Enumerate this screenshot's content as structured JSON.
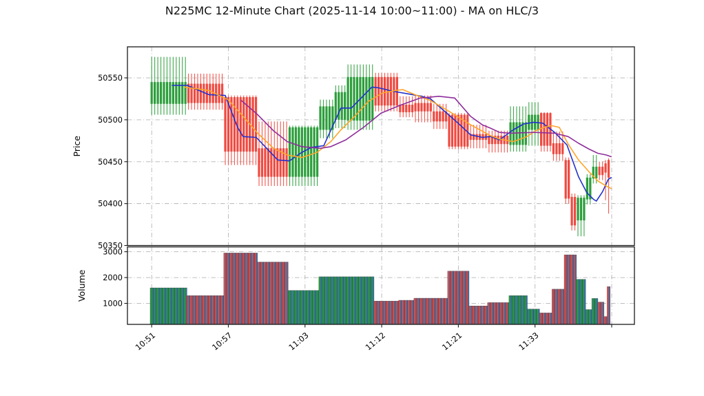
{
  "title": "N225MC 12-Minute Chart (2025-11-14 10:00~11:00) - MA on HLC/3",
  "chart_data": {
    "type": "candlestick+volume",
    "price_axis": {
      "label": "Price",
      "ticks": [
        50350,
        50400,
        50450,
        50500,
        50550
      ],
      "range": [
        50350,
        50587
      ]
    },
    "volume_axis": {
      "label": "Volume",
      "ticks": [
        1000,
        2000,
        3000
      ],
      "range": [
        187,
        3187
      ]
    },
    "x_axis": {
      "ticks": [
        {
          "index": 0,
          "label": "10:51"
        },
        {
          "index": 25,
          "label": "10:57"
        },
        {
          "index": 50,
          "label": "11:03"
        },
        {
          "index": 75,
          "label": "11:12"
        },
        {
          "index": 100,
          "label": "11:21"
        },
        {
          "index": 125,
          "label": "11:33"
        },
        {
          "index": 150,
          "label": ""
        }
      ]
    },
    "colors": {
      "up": "#2d9e3c",
      "down": "#ef4a41",
      "volume_overlay": "#3a77b0",
      "ma_blue": "#2231cc",
      "ma_orange": "#ffa427",
      "ma_purple": "#8e2d9c",
      "grid": "#b5b5b5",
      "spine": "#1a1a1a"
    },
    "segments": [
      {
        "n": 12,
        "dir": "up",
        "body": [
          50519,
          50545
        ],
        "wick": [
          50506,
          50575
        ],
        "volume": 1600
      },
      {
        "n": 12,
        "dir": "down",
        "body": [
          50520,
          50543
        ],
        "wick": [
          50512,
          50555
        ],
        "volume": 1300
      },
      {
        "n": 11,
        "dir": "down",
        "body": [
          50462,
          50527
        ],
        "wick": [
          50446,
          50529
        ],
        "volume": 2950
      },
      {
        "n": 10,
        "dir": "down",
        "body": [
          50432,
          50466
        ],
        "wick": [
          50421,
          50498
        ],
        "volume": 2600
      },
      {
        "n": 10,
        "dir": "up",
        "body": [
          50432,
          50491
        ],
        "wick": [
          50421,
          50493
        ],
        "volume": 1500
      },
      {
        "n": 5,
        "dir": "up",
        "body": [
          50488,
          50516
        ],
        "wick": [
          50478,
          50524
        ],
        "volume": 2030
      },
      {
        "n": 4,
        "dir": "up",
        "body": [
          50500,
          50533
        ],
        "wick": [
          50490,
          50541
        ],
        "volume": 2030
      },
      {
        "n": 9,
        "dir": "up",
        "body": [
          50499,
          50551
        ],
        "wick": [
          50488,
          50566
        ],
        "volume": 2030
      },
      {
        "n": 8,
        "dir": "down",
        "body": [
          50517,
          50551
        ],
        "wick": [
          50510,
          50556
        ],
        "volume": 1090
      },
      {
        "n": 5,
        "dir": "down",
        "body": [
          50509,
          50518
        ],
        "wick": [
          50503,
          50528
        ],
        "volume": 1120
      },
      {
        "n": 6,
        "dir": "down",
        "body": [
          50510,
          50520
        ],
        "wick": [
          50497,
          50529
        ],
        "volume": 1200
      },
      {
        "n": 5,
        "dir": "down",
        "body": [
          50498,
          50510
        ],
        "wick": [
          50489,
          50519
        ],
        "volume": 1200
      },
      {
        "n": 7,
        "dir": "down",
        "body": [
          50468,
          50506
        ],
        "wick": [
          50465,
          50508
        ],
        "volume": 2250
      },
      {
        "n": 6,
        "dir": "down",
        "body": [
          50476,
          50483
        ],
        "wick": [
          50466,
          50494
        ],
        "volume": 900
      },
      {
        "n": 7,
        "dir": "down",
        "body": [
          50471,
          50481
        ],
        "wick": [
          50461,
          50487
        ],
        "volume": 1030
      },
      {
        "n": 6,
        "dir": "up",
        "body": [
          50470,
          50497
        ],
        "wick": [
          50462,
          50516
        ],
        "volume": 1300
      },
      {
        "n": 4,
        "dir": "up",
        "body": [
          50488,
          50506
        ],
        "wick": [
          50469,
          50521
        ],
        "volume": 780
      },
      {
        "n": 4,
        "dir": "down",
        "body": [
          50469,
          50508
        ],
        "wick": [
          50462,
          50509
        ],
        "volume": 630
      },
      {
        "n": 4,
        "dir": "down",
        "body": [
          50459,
          50472
        ],
        "wick": [
          50451,
          50486
        ],
        "volume": 1550
      },
      {
        "n": 2,
        "dir": "down",
        "body": [
          50406,
          50452
        ],
        "wick": [
          50400,
          50455
        ],
        "volume": 2880
      },
      {
        "n": 2,
        "dir": "down",
        "body": [
          50374,
          50408
        ],
        "wick": [
          50368,
          50412
        ],
        "volume": 2880
      },
      {
        "n": 3,
        "dir": "up",
        "body": [
          50380,
          50407
        ],
        "wick": [
          50361,
          50410
        ],
        "volume": 1930
      },
      {
        "n": 2,
        "dir": "up",
        "body": [
          50405,
          50431
        ],
        "wick": [
          50399,
          50435
        ],
        "volume": 760
      },
      {
        "n": 2,
        "dir": "up",
        "body": [
          50430,
          50444
        ],
        "wick": [
          50424,
          50458
        ],
        "volume": 1190
      },
      {
        "n": 2,
        "dir": "down",
        "body": [
          50434,
          50444
        ],
        "wick": [
          50428,
          50450
        ],
        "volume": 1050
      },
      {
        "n": 1,
        "dir": "down",
        "body": [
          50437,
          50448
        ],
        "wick": [
          50404,
          50452
        ],
        "volume": 490
      },
      {
        "n": 1,
        "dir": "down",
        "body": [
          50431,
          50452
        ],
        "wick": [
          50388,
          50454
        ],
        "volume": 1650
      }
    ],
    "ma_series": [
      {
        "name": "ma_blue",
        "points": [
          [
            6.7,
            50541
          ],
          [
            11.6,
            50541
          ],
          [
            18.6,
            50530
          ],
          [
            24,
            50529
          ],
          [
            28,
            50491
          ],
          [
            29.8,
            50480
          ],
          [
            34.1,
            50479
          ],
          [
            41.1,
            50452
          ],
          [
            44.9,
            50451
          ],
          [
            48.9,
            50461
          ],
          [
            52.1,
            50467
          ],
          [
            56.1,
            50469
          ],
          [
            61.7,
            50514
          ],
          [
            65.1,
            50514
          ],
          [
            71.8,
            50539
          ],
          [
            74.1,
            50538
          ],
          [
            78.6,
            50534
          ],
          [
            83.5,
            50531
          ],
          [
            88,
            50528
          ],
          [
            90.9,
            50525
          ],
          [
            96.5,
            50507
          ],
          [
            99.9,
            50496
          ],
          [
            104,
            50482
          ],
          [
            107.8,
            50479
          ],
          [
            110.5,
            50480
          ],
          [
            113.4,
            50476
          ],
          [
            117.9,
            50488
          ],
          [
            121.3,
            50495
          ],
          [
            124.6,
            50497
          ],
          [
            127.5,
            50496
          ],
          [
            131.4,
            50485
          ],
          [
            135.4,
            50470
          ],
          [
            139.2,
            50432
          ],
          [
            141.9,
            50413
          ],
          [
            144.1,
            50405
          ],
          [
            145,
            50403
          ],
          [
            147,
            50414
          ],
          [
            148.9,
            50429
          ],
          [
            149.8,
            50431
          ]
        ]
      },
      {
        "name": "ma_orange",
        "points": [
          [
            10.7,
            50539
          ],
          [
            18.6,
            50535
          ],
          [
            24.9,
            50524
          ],
          [
            29.8,
            50504
          ],
          [
            34.3,
            50485
          ],
          [
            39.7,
            50466
          ],
          [
            44.2,
            50458
          ],
          [
            48.9,
            50455
          ],
          [
            53.9,
            50461
          ],
          [
            58.4,
            50474
          ],
          [
            61.7,
            50488
          ],
          [
            66.2,
            50504
          ],
          [
            70.7,
            50522
          ],
          [
            75.2,
            50532
          ],
          [
            79.7,
            50535
          ],
          [
            81.9,
            50536
          ],
          [
            86.5,
            50529
          ],
          [
            90.9,
            50523
          ],
          [
            97,
            50510
          ],
          [
            104,
            50494
          ],
          [
            110.5,
            50481
          ],
          [
            113.4,
            50477
          ],
          [
            117.9,
            50474
          ],
          [
            122.4,
            50480
          ],
          [
            125.3,
            50487
          ],
          [
            128,
            50491
          ],
          [
            130.3,
            50493
          ],
          [
            132.9,
            50491
          ],
          [
            135.8,
            50471
          ],
          [
            139.2,
            50452
          ],
          [
            142.6,
            50438
          ],
          [
            145.5,
            50427
          ],
          [
            148.2,
            50421
          ],
          [
            149.8,
            50418
          ]
        ]
      },
      {
        "name": "ma_purple",
        "points": [
          [
            29.2,
            50523
          ],
          [
            34.3,
            50507
          ],
          [
            39.7,
            50487
          ],
          [
            44.2,
            50474
          ],
          [
            48.9,
            50468
          ],
          [
            55,
            50466
          ],
          [
            58.4,
            50468
          ],
          [
            63.3,
            50476
          ],
          [
            69.1,
            50491
          ],
          [
            74.8,
            50508
          ],
          [
            80.8,
            50517
          ],
          [
            87.6,
            50526
          ],
          [
            93.6,
            50528
          ],
          [
            98.8,
            50526
          ],
          [
            104,
            50504
          ],
          [
            107.8,
            50494
          ],
          [
            110.5,
            50490
          ],
          [
            113.4,
            50485
          ],
          [
            116.8,
            50484
          ],
          [
            124.6,
            50485
          ],
          [
            131.4,
            50484
          ],
          [
            135.8,
            50480
          ],
          [
            139.2,
            50472
          ],
          [
            142.6,
            50465
          ],
          [
            145.5,
            50460
          ],
          [
            148.2,
            50458
          ],
          [
            149.8,
            50456
          ]
        ]
      }
    ]
  }
}
